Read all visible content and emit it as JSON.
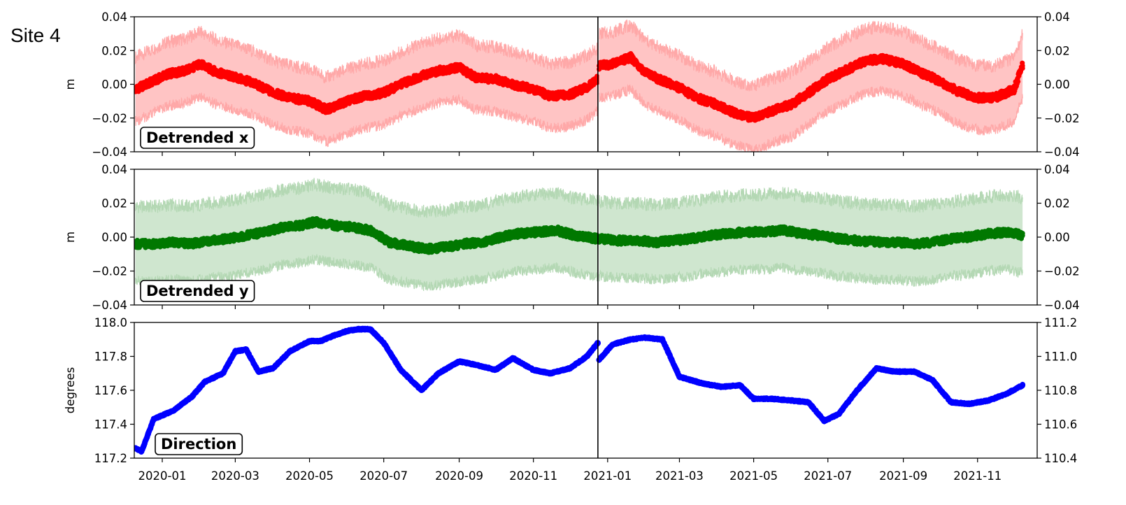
{
  "site_label": "Site 4",
  "chart_data": [
    {
      "type": "scatter",
      "panel_label": "Detrended x",
      "ylabel": "m",
      "ylim": [
        -0.04,
        0.04
      ],
      "yticks": [
        "0.04",
        "0.02",
        "0.00",
        "−0.02",
        "−0.04"
      ],
      "right_ylim": [
        -0.04,
        0.04
      ],
      "right_yticks": [
        "0.04",
        "0.02",
        "0.00",
        "−0.02",
        "−0.04"
      ],
      "colors": {
        "marker": "#ff0000",
        "band": "#ffc4c4",
        "band_edge": "#ffa8a8"
      },
      "band_halfwidth_m": 0.019,
      "series": [
        {
          "segment": "before",
          "x": [
            "2019-12-10",
            "2019-12-25",
            "2020-01-05",
            "2020-01-20",
            "2020-02-01",
            "2020-02-15",
            "2020-03-01",
            "2020-03-15",
            "2020-04-01",
            "2020-04-15",
            "2020-05-01",
            "2020-05-15",
            "2020-06-01",
            "2020-06-15",
            "2020-07-01",
            "2020-07-15",
            "2020-08-01",
            "2020-08-15",
            "2020-09-01",
            "2020-09-15",
            "2020-10-01",
            "2020-10-15",
            "2020-11-01",
            "2020-11-15",
            "2020-12-01",
            "2020-12-15",
            "2020-12-24"
          ],
          "y": [
            -0.003,
            0.002,
            0.006,
            0.008,
            0.012,
            0.007,
            0.004,
            0.001,
            -0.005,
            -0.008,
            -0.01,
            -0.015,
            -0.01,
            -0.007,
            -0.005,
            0.0,
            0.005,
            0.008,
            0.01,
            0.004,
            0.003,
            0.0,
            -0.003,
            -0.007,
            -0.006,
            -0.002,
            0.003
          ]
        },
        {
          "segment": "after",
          "x": [
            "2020-12-25",
            "2021-01-05",
            "2021-01-20",
            "2021-02-01",
            "2021-02-15",
            "2021-03-01",
            "2021-03-15",
            "2021-04-01",
            "2021-04-15",
            "2021-05-01",
            "2021-05-15",
            "2021-06-01",
            "2021-06-15",
            "2021-07-01",
            "2021-07-15",
            "2021-08-01",
            "2021-08-15",
            "2021-09-01",
            "2021-09-15",
            "2021-10-01",
            "2021-10-15",
            "2021-11-01",
            "2021-11-15",
            "2021-12-01",
            "2021-12-08"
          ],
          "y": [
            0.011,
            0.012,
            0.016,
            0.007,
            0.002,
            -0.002,
            -0.008,
            -0.012,
            -0.017,
            -0.02,
            -0.016,
            -0.012,
            -0.005,
            0.003,
            0.008,
            0.014,
            0.015,
            0.012,
            0.007,
            0.002,
            -0.004,
            -0.008,
            -0.008,
            -0.003,
            0.011
          ]
        }
      ]
    },
    {
      "type": "scatter",
      "panel_label": "Detrended y",
      "ylabel": "m",
      "ylim": [
        -0.04,
        0.04
      ],
      "yticks": [
        "0.04",
        "0.02",
        "0.00",
        "−0.02",
        "−0.04"
      ],
      "right_ylim": [
        -0.04,
        0.04
      ],
      "right_yticks": [
        "0.04",
        "0.02",
        "0.00",
        "−0.02",
        "−0.04"
      ],
      "colors": {
        "marker": "#007800",
        "band": "#cfe6cf",
        "band_edge": "#b4d8b4"
      },
      "band_halfwidth_m": 0.022,
      "series": [
        {
          "segment": "before",
          "x": [
            "2019-12-10",
            "2019-12-25",
            "2020-01-10",
            "2020-01-25",
            "2020-02-10",
            "2020-02-25",
            "2020-03-10",
            "2020-03-25",
            "2020-04-10",
            "2020-04-25",
            "2020-05-05",
            "2020-05-20",
            "2020-06-05",
            "2020-06-20",
            "2020-07-05",
            "2020-07-20",
            "2020-08-05",
            "2020-08-20",
            "2020-09-05",
            "2020-09-20",
            "2020-10-05",
            "2020-10-20",
            "2020-11-05",
            "2020-11-20",
            "2020-12-05",
            "2020-12-24"
          ],
          "y": [
            -0.004,
            -0.004,
            -0.003,
            -0.004,
            -0.002,
            -0.001,
            0.001,
            0.003,
            0.006,
            0.007,
            0.009,
            0.007,
            0.006,
            0.004,
            -0.003,
            -0.005,
            -0.007,
            -0.006,
            -0.004,
            -0.003,
            0.0,
            0.002,
            0.003,
            0.004,
            0.001,
            -0.001
          ]
        },
        {
          "segment": "after",
          "x": [
            "2020-12-25",
            "2021-01-10",
            "2021-01-25",
            "2021-02-10",
            "2021-02-25",
            "2021-03-10",
            "2021-03-25",
            "2021-04-10",
            "2021-04-25",
            "2021-05-10",
            "2021-05-25",
            "2021-06-10",
            "2021-06-25",
            "2021-07-10",
            "2021-07-25",
            "2021-08-10",
            "2021-08-25",
            "2021-09-10",
            "2021-09-25",
            "2021-10-10",
            "2021-10-25",
            "2021-11-10",
            "2021-11-25",
            "2021-12-08"
          ],
          "y": [
            -0.001,
            -0.002,
            -0.002,
            -0.003,
            -0.002,
            -0.001,
            0.001,
            0.002,
            0.003,
            0.003,
            0.004,
            0.002,
            0.001,
            -0.001,
            -0.002,
            -0.003,
            -0.003,
            -0.004,
            -0.003,
            -0.001,
            0.0,
            0.002,
            0.003,
            0.001
          ]
        }
      ]
    },
    {
      "type": "line",
      "panel_label": "Direction",
      "ylabel": "degrees",
      "ylim": [
        117.2,
        118.0
      ],
      "yticks": [
        "118.0",
        "117.8",
        "117.6",
        "117.4",
        "117.2"
      ],
      "right_ylim": [
        110.4,
        111.2
      ],
      "right_yticks": [
        "111.2",
        "111.0",
        "110.8",
        "110.6",
        "110.4"
      ],
      "colors": {
        "marker": "#0000ff"
      },
      "series": [
        {
          "segment": "before",
          "axis": "left",
          "x": [
            "2019-12-09",
            "2019-12-15",
            "2019-12-25",
            "2020-01-10",
            "2020-01-25",
            "2020-02-05",
            "2020-02-20",
            "2020-03-01",
            "2020-03-10",
            "2020-03-20",
            "2020-04-01",
            "2020-04-15",
            "2020-05-01",
            "2020-05-10",
            "2020-05-20",
            "2020-06-01",
            "2020-06-10",
            "2020-06-20",
            "2020-07-01",
            "2020-07-15",
            "2020-08-01",
            "2020-08-15",
            "2020-09-01",
            "2020-09-15",
            "2020-10-01",
            "2020-10-15",
            "2020-11-01",
            "2020-11-15",
            "2020-12-01",
            "2020-12-15",
            "2020-12-24"
          ],
          "y": [
            117.26,
            117.24,
            117.43,
            117.48,
            117.56,
            117.65,
            117.7,
            117.83,
            117.84,
            117.71,
            117.73,
            117.83,
            117.89,
            117.89,
            117.92,
            117.95,
            117.96,
            117.96,
            117.88,
            117.72,
            117.6,
            117.7,
            117.77,
            117.75,
            117.72,
            117.79,
            117.72,
            117.7,
            117.73,
            117.8,
            117.88
          ]
        },
        {
          "segment": "after",
          "axis": "right",
          "x": [
            "2020-12-25",
            "2021-01-05",
            "2021-01-20",
            "2021-02-01",
            "2021-02-15",
            "2021-03-01",
            "2021-03-20",
            "2021-04-05",
            "2021-04-20",
            "2021-05-01",
            "2021-05-15",
            "2021-06-01",
            "2021-06-15",
            "2021-06-28",
            "2021-07-10",
            "2021-07-25",
            "2021-08-10",
            "2021-08-25",
            "2021-09-10",
            "2021-09-25",
            "2021-10-10",
            "2021-10-25",
            "2021-11-10",
            "2021-11-25",
            "2021-12-08"
          ],
          "y": [
            110.98,
            111.07,
            111.1,
            111.11,
            111.1,
            110.88,
            110.84,
            110.82,
            110.83,
            110.75,
            110.75,
            110.74,
            110.73,
            110.62,
            110.66,
            110.8,
            110.93,
            110.91,
            110.91,
            110.86,
            110.73,
            110.72,
            110.74,
            110.78,
            110.83
          ]
        }
      ]
    }
  ],
  "x_axis": {
    "min": "2019-12-09",
    "max": "2021-12-20",
    "divider": "2020-12-24",
    "tick_labels": [
      "2020-01",
      "2020-03",
      "2020-05",
      "2020-07",
      "2020-09",
      "2020-11",
      "2021-01",
      "2021-03",
      "2021-05",
      "2021-07",
      "2021-09",
      "2021-11"
    ],
    "tick_dates": [
      "2020-01-01",
      "2020-03-01",
      "2020-05-01",
      "2020-07-01",
      "2020-09-01",
      "2020-11-01",
      "2021-01-01",
      "2021-03-01",
      "2021-05-01",
      "2021-07-01",
      "2021-09-01",
      "2021-11-01"
    ]
  }
}
